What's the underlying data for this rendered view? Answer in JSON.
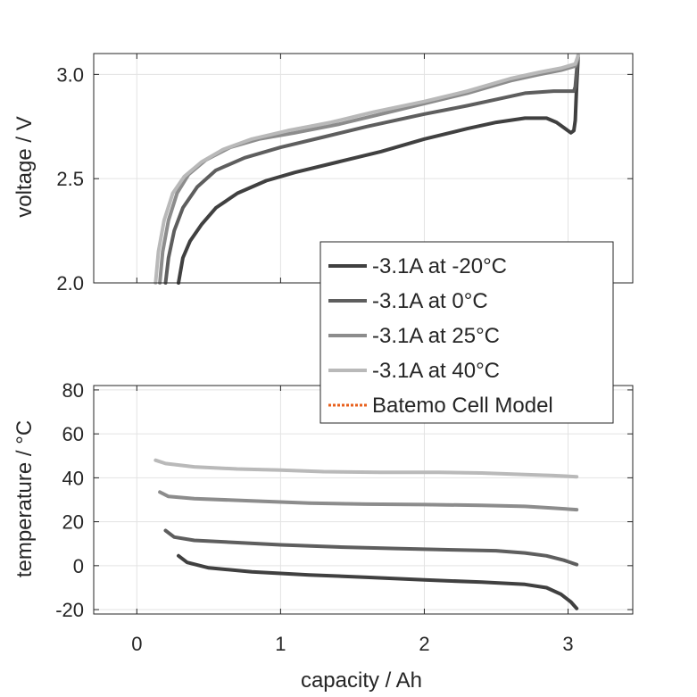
{
  "chart_data": [
    {
      "type": "line",
      "panel": "top",
      "title": "",
      "xlabel": "",
      "ylabel": "voltage / V",
      "xlim": [
        -0.3,
        3.45
      ],
      "ylim": [
        2.0,
        3.1
      ],
      "xticks": [
        0,
        1,
        2,
        3
      ],
      "yticks": [
        2.0,
        2.5,
        3.0
      ],
      "ytick_labels": [
        "2.0",
        "2.5",
        "3.0"
      ],
      "grid": true,
      "series": [
        {
          "name": "-3.1A at -20°C",
          "color": "#404040",
          "points": [
            [
              0.29,
              2.0
            ],
            [
              0.32,
              2.12
            ],
            [
              0.37,
              2.2
            ],
            [
              0.45,
              2.28
            ],
            [
              0.55,
              2.36
            ],
            [
              0.7,
              2.43
            ],
            [
              0.9,
              2.49
            ],
            [
              1.1,
              2.53
            ],
            [
              1.4,
              2.58
            ],
            [
              1.7,
              2.63
            ],
            [
              2.0,
              2.69
            ],
            [
              2.3,
              2.74
            ],
            [
              2.5,
              2.77
            ],
            [
              2.7,
              2.79
            ],
            [
              2.85,
              2.79
            ],
            [
              2.92,
              2.77
            ],
            [
              2.98,
              2.74
            ],
            [
              3.02,
              2.72
            ],
            [
              3.04,
              2.73
            ],
            [
              3.05,
              2.78
            ],
            [
              3.06,
              2.95
            ],
            [
              3.07,
              3.08
            ]
          ]
        },
        {
          "name": "-3.1A at 0°C",
          "color": "#5e5e5e",
          "points": [
            [
              0.2,
              2.0
            ],
            [
              0.22,
              2.12
            ],
            [
              0.26,
              2.25
            ],
            [
              0.32,
              2.36
            ],
            [
              0.42,
              2.46
            ],
            [
              0.55,
              2.54
            ],
            [
              0.75,
              2.6
            ],
            [
              1.0,
              2.65
            ],
            [
              1.3,
              2.7
            ],
            [
              1.6,
              2.75
            ],
            [
              2.0,
              2.81
            ],
            [
              2.3,
              2.85
            ],
            [
              2.5,
              2.88
            ],
            [
              2.7,
              2.91
            ],
            [
              2.9,
              2.92
            ],
            [
              3.0,
              2.92
            ],
            [
              3.04,
              2.92
            ],
            [
              3.05,
              2.94
            ],
            [
              3.06,
              3.02
            ],
            [
              3.07,
              3.09
            ]
          ]
        },
        {
          "name": "-3.1A at 25°C",
          "color": "#8c8c8c",
          "points": [
            [
              0.16,
              2.0
            ],
            [
              0.18,
              2.15
            ],
            [
              0.22,
              2.3
            ],
            [
              0.28,
              2.43
            ],
            [
              0.36,
              2.52
            ],
            [
              0.48,
              2.59
            ],
            [
              0.65,
              2.65
            ],
            [
              0.85,
              2.69
            ],
            [
              1.1,
              2.72
            ],
            [
              1.4,
              2.76
            ],
            [
              1.7,
              2.81
            ],
            [
              2.0,
              2.86
            ],
            [
              2.3,
              2.91
            ],
            [
              2.6,
              2.97
            ],
            [
              2.8,
              3.0
            ],
            [
              2.95,
              3.02
            ],
            [
              3.05,
              3.04
            ],
            [
              3.07,
              3.08
            ]
          ]
        },
        {
          "name": "-3.1A at 40°C",
          "color": "#b9b9b9",
          "points": [
            [
              0.13,
              2.0
            ],
            [
              0.15,
              2.15
            ],
            [
              0.19,
              2.3
            ],
            [
              0.25,
              2.43
            ],
            [
              0.33,
              2.51
            ],
            [
              0.45,
              2.58
            ],
            [
              0.6,
              2.64
            ],
            [
              0.8,
              2.69
            ],
            [
              1.05,
              2.73
            ],
            [
              1.35,
              2.77
            ],
            [
              1.65,
              2.82
            ],
            [
              2.0,
              2.87
            ],
            [
              2.3,
              2.92
            ],
            [
              2.6,
              2.98
            ],
            [
              2.8,
              3.01
            ],
            [
              2.95,
              3.03
            ],
            [
              3.05,
              3.05
            ],
            [
              3.07,
              3.09
            ]
          ]
        }
      ]
    },
    {
      "type": "line",
      "panel": "bottom",
      "title": "",
      "xlabel": "capacity / Ah",
      "ylabel": "temperature / °C",
      "xlim": [
        -0.3,
        3.45
      ],
      "ylim": [
        -22,
        82
      ],
      "xticks": [
        0,
        1,
        2,
        3
      ],
      "xtick_labels": [
        "0",
        "1",
        "2",
        "3"
      ],
      "yticks": [
        -20,
        0,
        20,
        40,
        60,
        80
      ],
      "ytick_labels": [
        "-20",
        "0",
        "20",
        "40",
        "60",
        "80"
      ],
      "grid": true,
      "series": [
        {
          "name": "-3.1A at -20°C",
          "color": "#404040",
          "points": [
            [
              0.29,
              4.5
            ],
            [
              0.35,
              1.5
            ],
            [
              0.5,
              -1
            ],
            [
              0.8,
              -2.8
            ],
            [
              1.2,
              -4.2
            ],
            [
              1.6,
              -5.3
            ],
            [
              2.0,
              -6.5
            ],
            [
              2.4,
              -7.5
            ],
            [
              2.7,
              -8.5
            ],
            [
              2.85,
              -10
            ],
            [
              2.95,
              -13
            ],
            [
              3.02,
              -16.5
            ],
            [
              3.06,
              -19.5
            ]
          ]
        },
        {
          "name": "-3.1A at 0°C",
          "color": "#5e5e5e",
          "points": [
            [
              0.2,
              16
            ],
            [
              0.26,
              13
            ],
            [
              0.4,
              11.5
            ],
            [
              0.7,
              10.5
            ],
            [
              1.0,
              9.5
            ],
            [
              1.4,
              8.5
            ],
            [
              1.8,
              7.8
            ],
            [
              2.2,
              7.2
            ],
            [
              2.5,
              6.8
            ],
            [
              2.7,
              5.8
            ],
            [
              2.85,
              4.5
            ],
            [
              2.97,
              2.5
            ],
            [
              3.06,
              0.5
            ]
          ]
        },
        {
          "name": "-3.1A at 25°C",
          "color": "#8c8c8c",
          "points": [
            [
              0.16,
              33.5
            ],
            [
              0.22,
              31.5
            ],
            [
              0.4,
              30.5
            ],
            [
              0.8,
              29.5
            ],
            [
              1.2,
              28.5
            ],
            [
              1.6,
              28
            ],
            [
              2.0,
              27.8
            ],
            [
              2.4,
              27.5
            ],
            [
              2.7,
              27
            ],
            [
              2.9,
              26.2
            ],
            [
              3.06,
              25.5
            ]
          ]
        },
        {
          "name": "-3.1A at 40°C",
          "color": "#b9b9b9",
          "points": [
            [
              0.13,
              48
            ],
            [
              0.2,
              46.5
            ],
            [
              0.4,
              45
            ],
            [
              0.7,
              44
            ],
            [
              1.0,
              43.5
            ],
            [
              1.3,
              42.8
            ],
            [
              1.7,
              42.5
            ],
            [
              2.1,
              42.5
            ],
            [
              2.4,
              42.2
            ],
            [
              2.7,
              41.5
            ],
            [
              2.9,
              41
            ],
            [
              3.06,
              40.5
            ]
          ]
        }
      ]
    }
  ],
  "legend": {
    "placement": "center-right, spanning both panels",
    "entries": [
      {
        "label": "-3.1A at -20°C",
        "color": "#404040",
        "style": "solid"
      },
      {
        "label": "-3.1A at 0°C",
        "color": "#5e5e5e",
        "style": "solid"
      },
      {
        "label": "-3.1A at 25°C",
        "color": "#8c8c8c",
        "style": "solid"
      },
      {
        "label": "-3.1A at 40°C",
        "color": "#b9b9b9",
        "style": "solid"
      },
      {
        "label": "Batemo Cell Model",
        "color": "#e8601c",
        "style": "dotted"
      }
    ]
  }
}
